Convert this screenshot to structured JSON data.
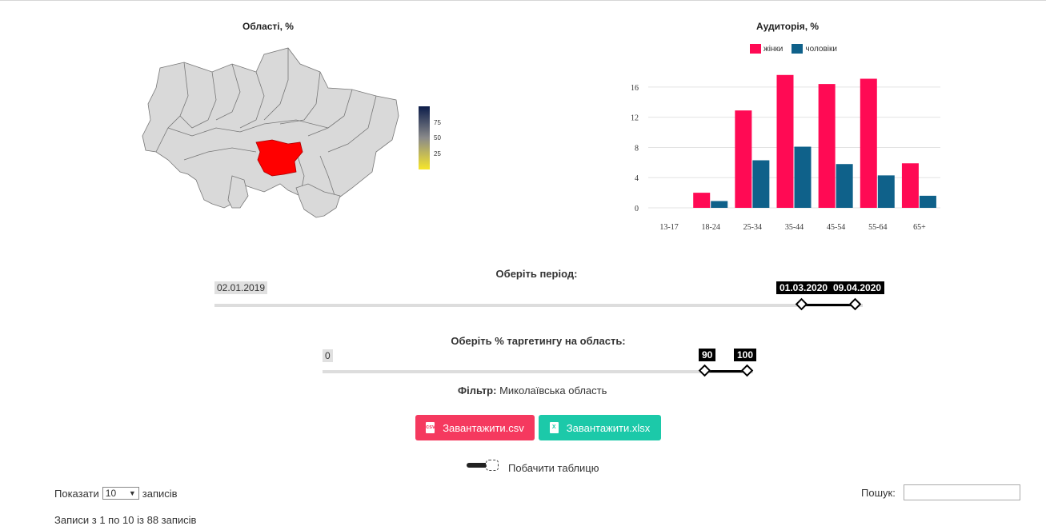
{
  "map": {
    "title": "Області, %",
    "legend_ticks": [
      "75",
      "50",
      "25"
    ],
    "colors": {
      "region_default": "#d9d9d9",
      "region_selected": "#ff0000",
      "border": "#777777"
    }
  },
  "chart_data": {
    "type": "bar",
    "title": "Аудиторія, %",
    "categories": [
      "13-17",
      "18-24",
      "25-34",
      "35-44",
      "45-54",
      "55-64",
      "65+"
    ],
    "series": [
      {
        "name": "жінки",
        "color": "#ff0a54",
        "values": [
          0,
          2.0,
          12.9,
          17.6,
          16.4,
          17.1,
          5.9
        ]
      },
      {
        "name": "чоловіки",
        "color": "#0f618a",
        "values": [
          0,
          0.9,
          6.3,
          8.1,
          5.8,
          4.3,
          1.6
        ]
      }
    ],
    "yticks": [
      0,
      4,
      8,
      12,
      16
    ],
    "ylim": [
      0,
      18
    ],
    "grid": true,
    "legend_position": "top"
  },
  "period": {
    "label": "Оберіть період:",
    "min_label": "02.01.2019",
    "from_label": "01.03.2020",
    "to_label": "09.04.2020",
    "from": 0.91,
    "to": 1.0
  },
  "targeting": {
    "label": "Оберіть % таргетингу на область:",
    "min_label": "0",
    "from_label": "90",
    "to_label": "100",
    "from": 90,
    "to": 100
  },
  "filter": {
    "label": "Фільтр:",
    "value": "Миколаївська область"
  },
  "buttons": {
    "csv": {
      "label": "Завантажити.csv",
      "color": "#f5395f",
      "icon": "file-csv-icon"
    },
    "xlsx": {
      "label": "Завантажити.xlsx",
      "color": "#1cc9a9",
      "icon": "file-excel-icon"
    }
  },
  "toggle": {
    "label": "Побачити таблицю",
    "on": false
  },
  "table_controls": {
    "show_prefix": "Показати",
    "page_size": "10",
    "show_suffix": "записів",
    "search_label": "Пошук:",
    "search_value": "",
    "info": "Записи з 1 по 10 із 88 записів"
  }
}
